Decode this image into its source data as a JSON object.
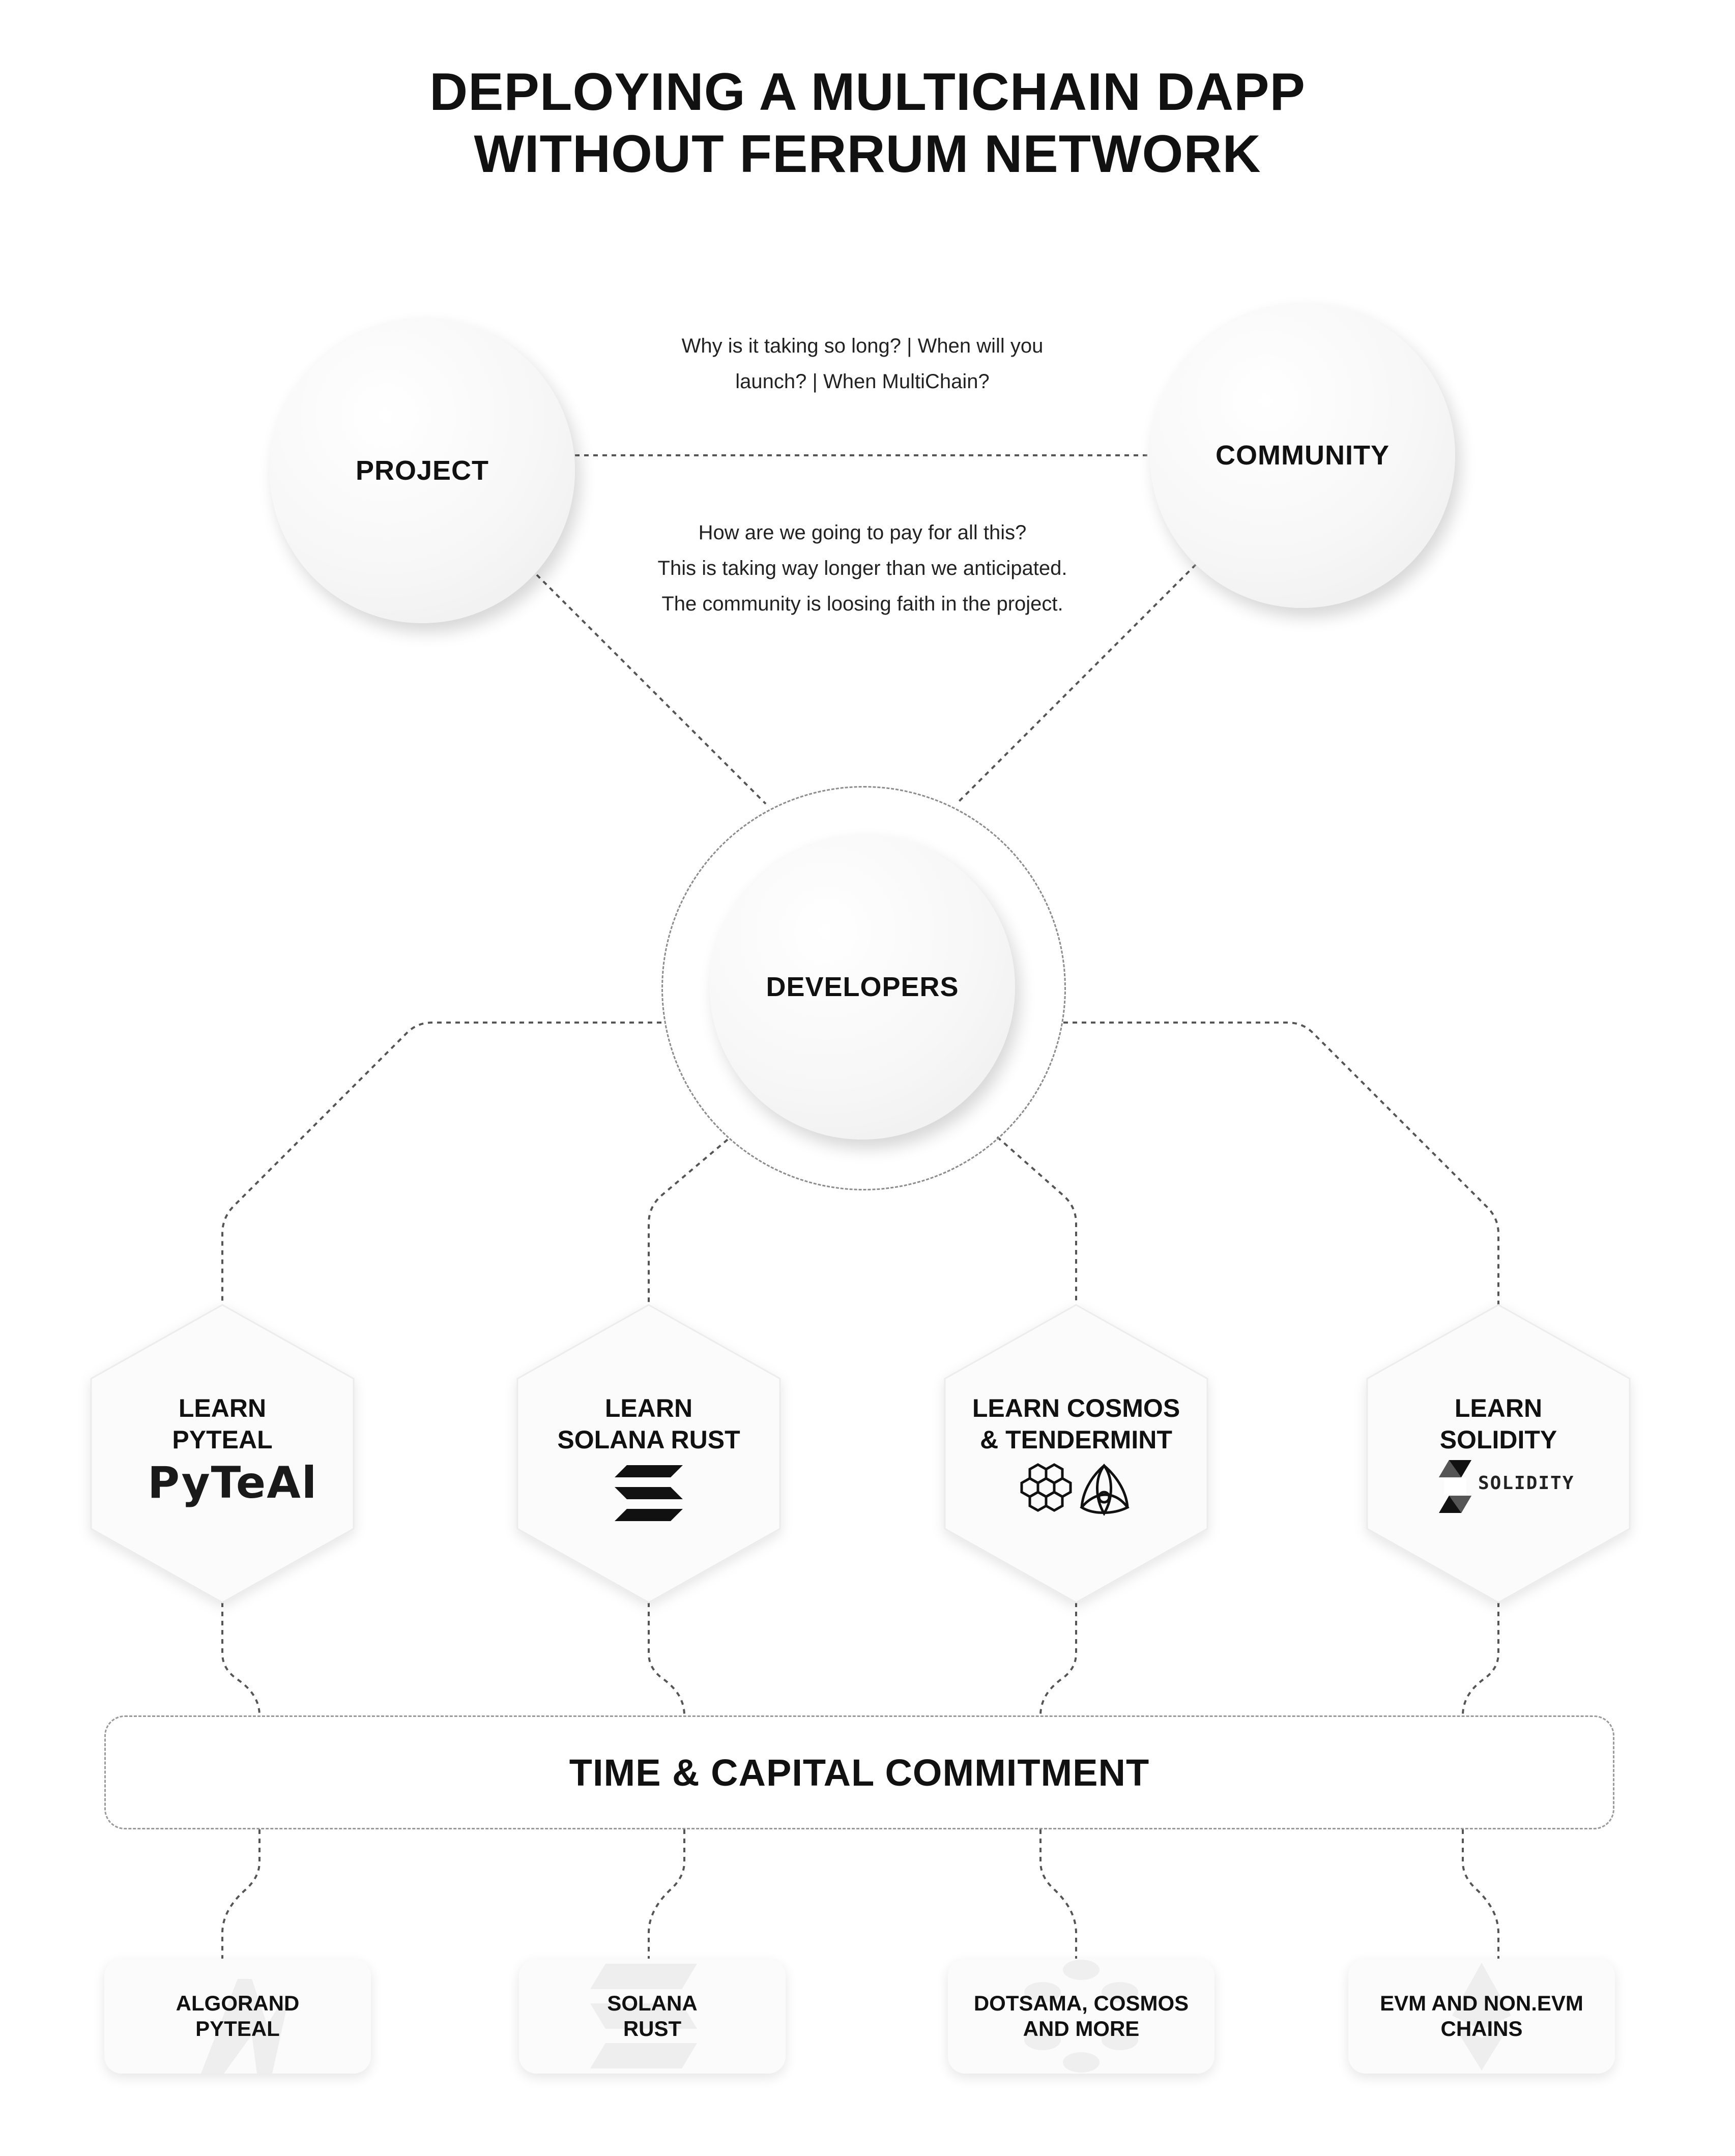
{
  "title": {
    "line1": "DEPLOYING A MULTICHAIN DAPP",
    "line2": "WITHOUT FERRUM NETWORK"
  },
  "nodes": {
    "project": "PROJECT",
    "community": "COMMUNITY",
    "developers": "DEVELOPERS"
  },
  "notes": {
    "community_questions": {
      "line1": "Why is it taking so long?  |  When will you",
      "line2": "launch?  |  When MultiChain?"
    },
    "project_concerns": {
      "line1": "How are we going to pay for all this?",
      "line2": "This is taking way longer than we anticipated.",
      "line3": "The community is loosing faith in the project."
    }
  },
  "learn": [
    {
      "line1": "LEARN",
      "line2": "PYTEAL",
      "logo": "PyTeAl"
    },
    {
      "line1": "LEARN",
      "line2": "SOLANA RUST",
      "logo": "solana-logo-icon"
    },
    {
      "line1": "LEARN COSMOS",
      "line2": "& TENDERMINT",
      "logo": "cosmos-tendermint-icons"
    },
    {
      "line1": "LEARN",
      "line2": "SOLIDITY",
      "logo": "SOLIDITY"
    }
  ],
  "commitment": "TIME  & CAPITAL COMMITMENT",
  "outcomes": [
    {
      "line1": "ALGORAND",
      "line2": "PYTEAL",
      "watermark": "algorand-icon"
    },
    {
      "line1": "SOLANA",
      "line2": "RUST",
      "watermark": "solana-icon"
    },
    {
      "line1": "DOTSAMA, COSMOS",
      "line2": "AND MORE",
      "watermark": "polkadot-icon"
    },
    {
      "line1": "EVM AND NON.EVM",
      "line2": "CHAINS",
      "watermark": "ethereum-icon"
    }
  ],
  "colors": {
    "text": "#111111",
    "dash": "#555555",
    "card": "#fbfbfb"
  }
}
